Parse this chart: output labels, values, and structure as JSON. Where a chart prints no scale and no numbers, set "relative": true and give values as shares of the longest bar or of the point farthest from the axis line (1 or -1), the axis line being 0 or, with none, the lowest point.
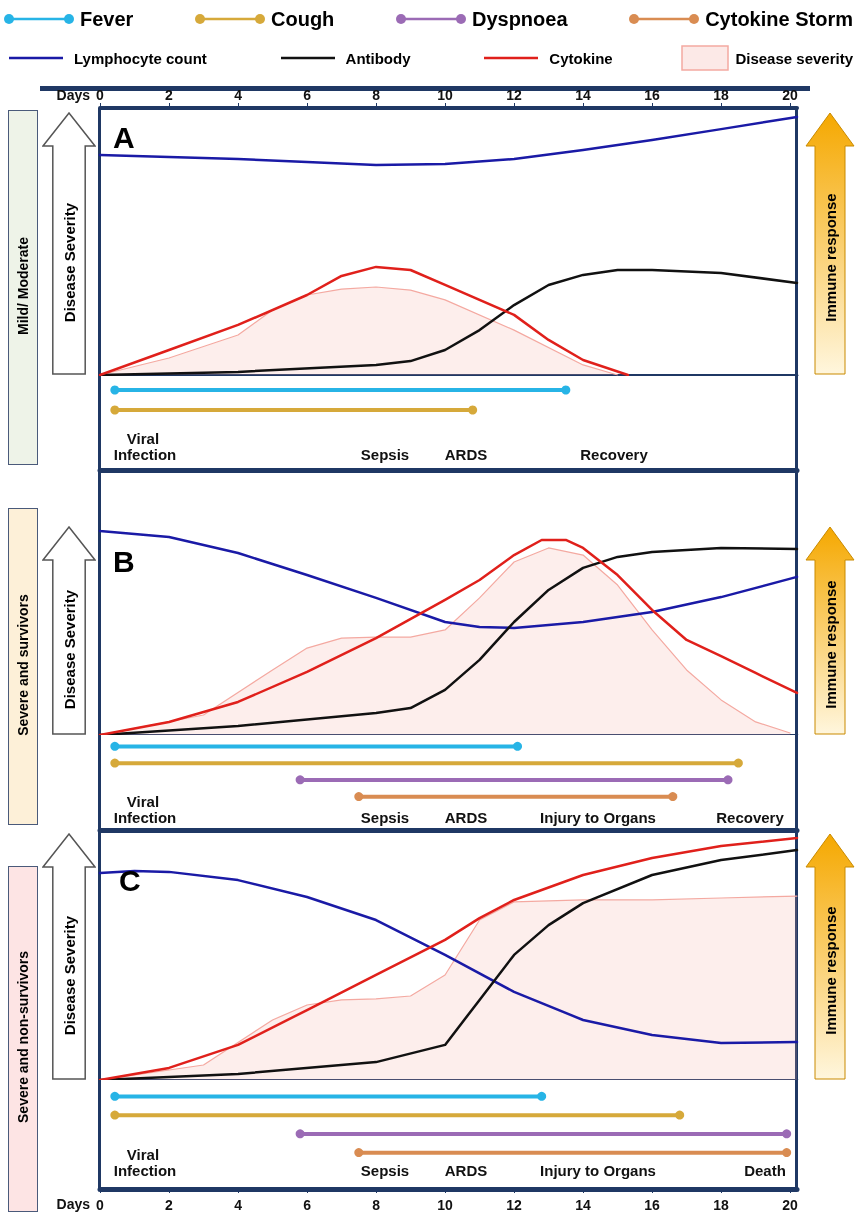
{
  "chart_data": [
    {
      "type": "line",
      "title": "A",
      "subtitle": "Mild/ Moderate",
      "ylabel": "Disease Severity",
      "y2label": "Immune response",
      "relative": true,
      "xlim": [
        0,
        20.2
      ],
      "x2lim": [
        0,
        20.2
      ],
      "x2ticks": [
        0,
        2,
        4,
        6,
        8,
        10,
        12,
        14,
        16,
        18,
        20
      ],
      "x2label": "Days",
      "legend": "top",
      "series": [
        {
          "name": "Lymphocyte count",
          "color": "#1a1aa6",
          "x": [
            0,
            2,
            4,
            6,
            8,
            10,
            12,
            14,
            16,
            18,
            20.2
          ],
          "values": [
            0.853,
            0.845,
            0.837,
            0.826,
            0.814,
            0.818,
            0.837,
            0.872,
            0.911,
            0.953,
            1
          ]
        },
        {
          "name": "Antibody",
          "color": "#111111",
          "x": [
            0,
            4,
            8,
            9,
            10,
            11,
            12,
            13,
            14,
            15,
            16,
            18,
            20.2
          ],
          "values": [
            0,
            0.012,
            0.039,
            0.054,
            0.097,
            0.174,
            0.271,
            0.349,
            0.388,
            0.407,
            0.407,
            0.395,
            0.357
          ]
        },
        {
          "name": "Cytokine",
          "color": "#e0201b",
          "x": [
            0,
            2,
            4,
            6,
            7,
            8,
            9,
            10,
            12,
            13,
            14,
            15.3
          ],
          "values": [
            0,
            0.097,
            0.194,
            0.31,
            0.384,
            0.419,
            0.407,
            0.349,
            0.233,
            0.136,
            0.058,
            0
          ]
        },
        {
          "name": "Disease severity",
          "type": "area",
          "color": "#f4a9a1",
          "x": [
            0,
            2,
            4,
            5,
            6,
            7,
            8,
            9,
            10,
            12,
            14,
            15
          ],
          "values": [
            0,
            0.066,
            0.155,
            0.252,
            0.31,
            0.333,
            0.341,
            0.329,
            0.291,
            0.174,
            0.039,
            0
          ]
        }
      ]
    },
    {
      "type": "bar",
      "orientation": "horizontal",
      "categories": [
        null
      ],
      "xlim": [
        0,
        20.2
      ],
      "tick_labels": false,
      "marker": "circle",
      "annotations": [
        "Viral Infection",
        "Sepsis",
        "ARDS",
        "Recovery"
      ],
      "series": [
        {
          "color": "#27b4e6",
          "base": [
            0.43
          ],
          "values": [
            13.07
          ]
        },
        {
          "color": "#d6a93a",
          "base": [
            0.43
          ],
          "values": [
            10.37
          ]
        }
      ]
    },
    {
      "type": "line",
      "title": "B",
      "subtitle": "Severe and survivors",
      "ylabel": "Disease Severity",
      "y2label": "Immune response",
      "relative": true,
      "xlim": [
        0,
        20.2
      ],
      "series": [
        {
          "name": "Lymphocyte count",
          "color": "#1a1aa6",
          "x": [
            0,
            2,
            4,
            6,
            8,
            10,
            11,
            12,
            14,
            16,
            18,
            20.2
          ],
          "values": [
            1,
            0.971,
            0.892,
            0.784,
            0.672,
            0.554,
            0.529,
            0.525,
            0.554,
            0.603,
            0.676,
            0.775
          ]
        },
        {
          "name": "Antibody",
          "color": "#111111",
          "x": [
            0,
            4,
            8,
            9,
            10,
            11,
            12,
            13,
            14,
            15,
            16,
            18,
            20.2
          ],
          "values": [
            0,
            0.044,
            0.108,
            0.132,
            0.221,
            0.368,
            0.554,
            0.711,
            0.819,
            0.873,
            0.897,
            0.917,
            0.912
          ]
        },
        {
          "name": "Cytokine",
          "color": "#e0201b",
          "x": [
            0,
            2,
            4,
            6,
            8,
            10,
            11,
            12,
            12.8,
            13.5,
            14,
            15,
            16,
            17,
            18,
            19,
            20.2
          ],
          "values": [
            0,
            0.064,
            0.162,
            0.309,
            0.475,
            0.662,
            0.76,
            0.882,
            0.956,
            0.956,
            0.917,
            0.784,
            0.613,
            0.466,
            0.387,
            0.304,
            0.206
          ]
        },
        {
          "name": "Disease severity",
          "type": "area",
          "color": "#f4a9a1",
          "x": [
            0,
            3,
            5,
            6,
            7,
            8,
            9,
            10,
            11,
            12,
            13,
            14,
            15,
            16,
            17,
            18,
            19,
            20
          ],
          "values": [
            0,
            0.098,
            0.319,
            0.426,
            0.475,
            0.48,
            0.48,
            0.515,
            0.672,
            0.848,
            0.917,
            0.882,
            0.735,
            0.515,
            0.319,
            0.172,
            0.064,
            0.01
          ]
        }
      ]
    },
    {
      "type": "bar",
      "orientation": "horizontal",
      "categories": [
        null
      ],
      "xlim": [
        0,
        20.2
      ],
      "tick_labels": false,
      "legend": "top",
      "marker": "circle",
      "annotations": [
        "Viral Infection",
        "Sepsis",
        "ARDS",
        "Injury to Organs",
        "Recovery"
      ],
      "series": [
        {
          "name": "Fever",
          "color": "#27b4e6",
          "base": [
            0.43
          ],
          "values": [
            11.67
          ]
        },
        {
          "name": "Cough",
          "color": "#d6a93a",
          "base": [
            0.43
          ],
          "values": [
            18.07
          ]
        },
        {
          "name": "Dyspnoea",
          "color": "#9b6bb5",
          "base": [
            5.8
          ],
          "values": [
            12.4
          ]
        },
        {
          "name": "Cytokine Storm",
          "color": "#d98c52",
          "base": [
            7.5
          ],
          "values": [
            9.1
          ]
        }
      ]
    },
    {
      "type": "line",
      "title": "C",
      "subtitle": "Severe and non-survivors",
      "ylabel": "Disease Severity",
      "y2label": "Immune response",
      "relative": true,
      "xlim": [
        0,
        20.2
      ],
      "series": [
        {
          "name": "Lymphocyte count",
          "color": "#1a1aa6",
          "x": [
            0,
            1,
            2,
            4,
            6,
            8,
            10,
            12,
            14,
            16,
            18,
            20.2
          ],
          "values": [
            0.855,
            0.864,
            0.86,
            0.826,
            0.756,
            0.661,
            0.517,
            0.364,
            0.248,
            0.186,
            0.153,
            0.157
          ]
        },
        {
          "name": "Antibody",
          "color": "#111111",
          "x": [
            0,
            4,
            8,
            10,
            11,
            12,
            13,
            14,
            16,
            18,
            20.2
          ],
          "values": [
            0,
            0.025,
            0.074,
            0.145,
            0.331,
            0.517,
            0.64,
            0.731,
            0.847,
            0.909,
            0.95
          ]
        },
        {
          "name": "Cytokine",
          "color": "#e0201b",
          "x": [
            0,
            2,
            4,
            6,
            8,
            10,
            11,
            12,
            14,
            16,
            18,
            20.2
          ],
          "values": [
            0,
            0.05,
            0.145,
            0.289,
            0.434,
            0.579,
            0.669,
            0.744,
            0.847,
            0.917,
            0.967,
            1
          ]
        },
        {
          "name": "Disease severity",
          "type": "area",
          "color": "#f4a9a1",
          "x": [
            0,
            3,
            5,
            6,
            7,
            8,
            9,
            10,
            11,
            12,
            14,
            16,
            18,
            20.2
          ],
          "values": [
            0,
            0.062,
            0.248,
            0.31,
            0.331,
            0.335,
            0.347,
            0.434,
            0.661,
            0.736,
            0.744,
            0.744,
            0.752,
            0.76
          ]
        }
      ]
    },
    {
      "type": "bar",
      "orientation": "horizontal",
      "categories": [
        null
      ],
      "xlim": [
        0,
        20.2
      ],
      "xticks": [
        0,
        2,
        4,
        6,
        8,
        10,
        12,
        14,
        16,
        18,
        20
      ],
      "xlabel": "Days",
      "tick_labels": "x",
      "marker": "circle",
      "annotations": [
        "Viral Infection",
        "Sepsis",
        "ARDS",
        "Injury to Organs",
        "Death"
      ],
      "series": [
        {
          "color": "#27b4e6",
          "base": [
            0.43
          ],
          "values": [
            12.37
          ]
        },
        {
          "color": "#d6a93a",
          "base": [
            0.43
          ],
          "values": [
            16.37
          ]
        },
        {
          "color": "#9b6bb5",
          "base": [
            5.8
          ],
          "values": [
            14.1
          ]
        },
        {
          "color": "#d98c52",
          "base": [
            7.5
          ],
          "values": [
            12.4
          ]
        }
      ]
    }
  ]
}
